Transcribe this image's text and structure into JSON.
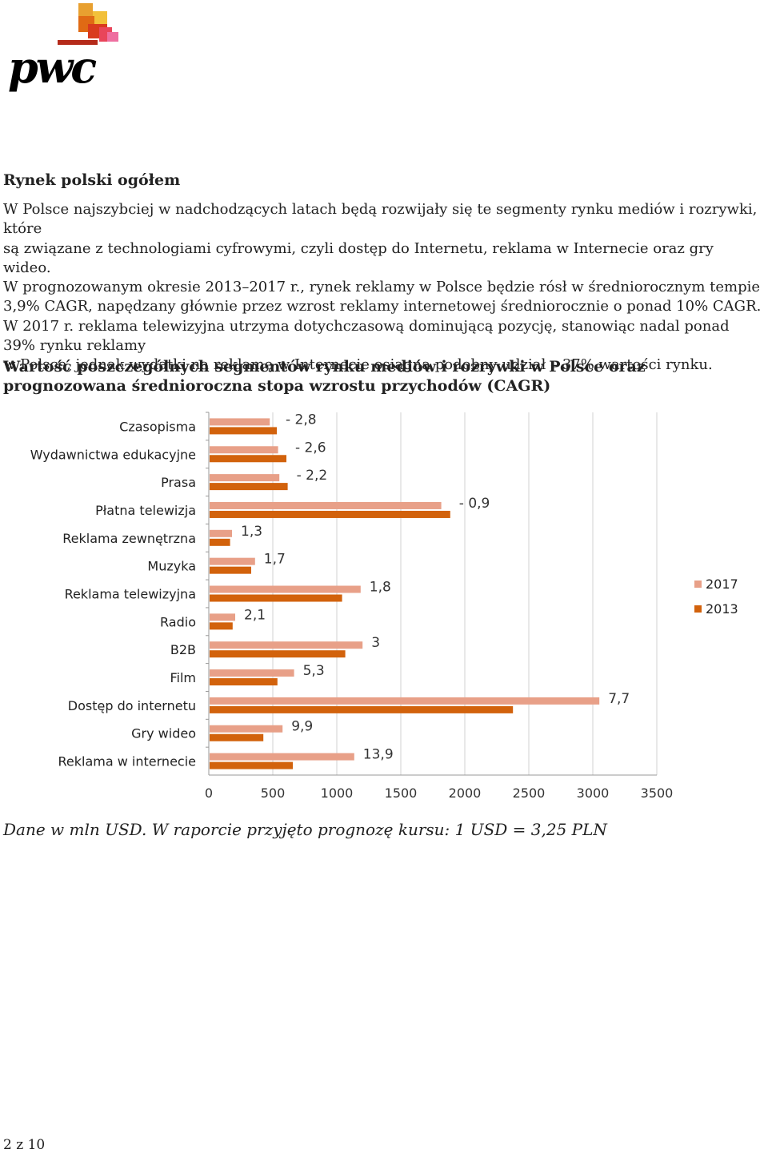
{
  "logo": {
    "text": "pwc"
  },
  "section_title": "Rynek polski ogółem",
  "paragraph_lines": [
    "W Polsce najszybciej w nadchodzących latach będą rozwijały się te segmenty rynku mediów i rozrywki,",
    "które",
    "są związane z technologiami cyfrowymi, czyli dostęp do Internetu, reklama w Internecie oraz gry wideo.",
    "W prognozowanym okresie 2013–2017 r., rynek reklamy w Polsce będzie rósł w średniorocznym tempie",
    "3,9% CAGR, napędzany głównie przez wzrost reklamy internetowej średniorocznie o ponad 10% CAGR.",
    "W 2017 r. reklama telewizyjna utrzyma dotychczasową dominującą pozycję, stanowiąc nadal ponad",
    "39% rynku reklamy",
    "w Polsce, jednak wydatki na reklamę w Internecie osiągną podobny udział – 37% wartości rynku."
  ],
  "chart_title_lines": [
    "Wartość poszczególnych segmentów rynku mediów i rozrywki w Polsce oraz",
    "prognozowana średnioroczna stopa wzrostu przychodów (CAGR)"
  ],
  "chart_data": {
    "type": "bar",
    "orientation": "horizontal",
    "categories": [
      "Czasopisma",
      "Wydawnictwa edukacyjne",
      "Prasa",
      "Płatna telewizja",
      "Reklama zewnętrzna",
      "Muzyka",
      "Reklama telewizyjna",
      "Radio",
      "B2B",
      "Film",
      "Dostęp do internetu",
      "Gry wideo",
      "Reklama w internecie"
    ],
    "series": [
      {
        "name": "2017",
        "color": "#E8A088",
        "values": [
          470,
          535,
          545,
          1810,
          175,
          355,
          1180,
          200,
          1195,
          660,
          3045,
          570,
          1130
        ]
      },
      {
        "name": "2013",
        "color": "#D2620C",
        "values": [
          525,
          600,
          610,
          1880,
          160,
          325,
          1035,
          180,
          1060,
          530,
          2370,
          420,
          650
        ]
      }
    ],
    "cagr_labels": [
      "- 2,8",
      "- 2,6",
      "- 2,2",
      "- 0,9",
      "1,3",
      "1,7",
      "1,8",
      "2,1",
      "3",
      "5,3",
      "7,7",
      "9,9",
      "13,9"
    ],
    "xlim": [
      0,
      3500
    ],
    "xticks": [
      "0",
      "500",
      "1000",
      "1500",
      "2000",
      "2500",
      "3000",
      "3500"
    ],
    "grid": true,
    "legend_position": "right"
  },
  "note": "Dane w mln USD. W raporcie przyjęto prognozę kursu: 1 USD = 3,25 PLN",
  "page_number": "2 z 10"
}
